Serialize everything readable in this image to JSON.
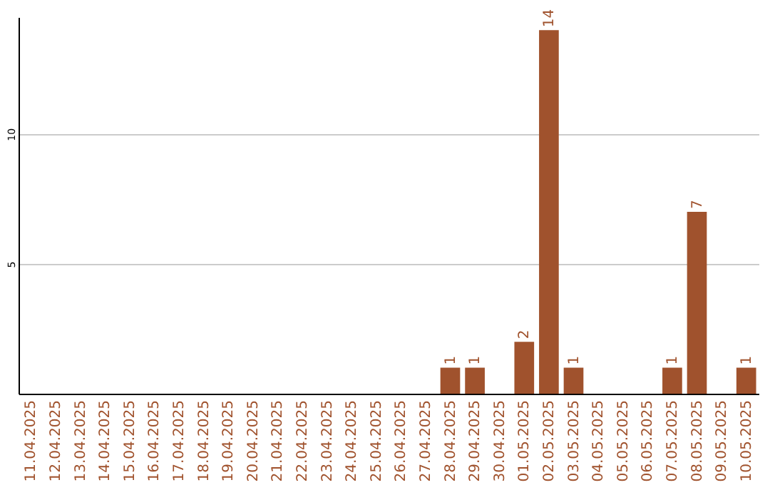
{
  "chart_data": {
    "type": "bar",
    "categories": [
      "11.04.2025",
      "12.04.2025",
      "13.04.2025",
      "14.04.2025",
      "15.04.2025",
      "16.04.2025",
      "17.04.2025",
      "18.04.2025",
      "19.04.2025",
      "20.04.2025",
      "21.04.2025",
      "22.04.2025",
      "23.04.2025",
      "24.04.2025",
      "25.04.2025",
      "26.04.2025",
      "27.04.2025",
      "28.04.2025",
      "29.04.2025",
      "30.04.2025",
      "01.05.2025",
      "02.05.2025",
      "03.05.2025",
      "04.05.2025",
      "05.05.2025",
      "06.05.2025",
      "07.05.2025",
      "08.05.2025",
      "09.05.2025",
      "10.05.2025"
    ],
    "values": [
      0,
      0,
      0,
      0,
      0,
      0,
      0,
      0,
      0,
      0,
      0,
      0,
      0,
      0,
      0,
      0,
      0,
      1,
      1,
      0,
      2,
      14,
      1,
      0,
      0,
      0,
      1,
      7,
      0,
      1
    ],
    "value_labels": [
      null,
      null,
      null,
      null,
      null,
      null,
      null,
      null,
      null,
      null,
      null,
      null,
      null,
      null,
      null,
      null,
      null,
      "1",
      "1",
      null,
      "2",
      "14",
      "1",
      null,
      null,
      null,
      "1",
      "7",
      null,
      "1"
    ],
    "color": "#a0522d",
    "ylim": [
      0,
      14.5
    ],
    "yticks": [
      5,
      10
    ],
    "grid": "y"
  }
}
